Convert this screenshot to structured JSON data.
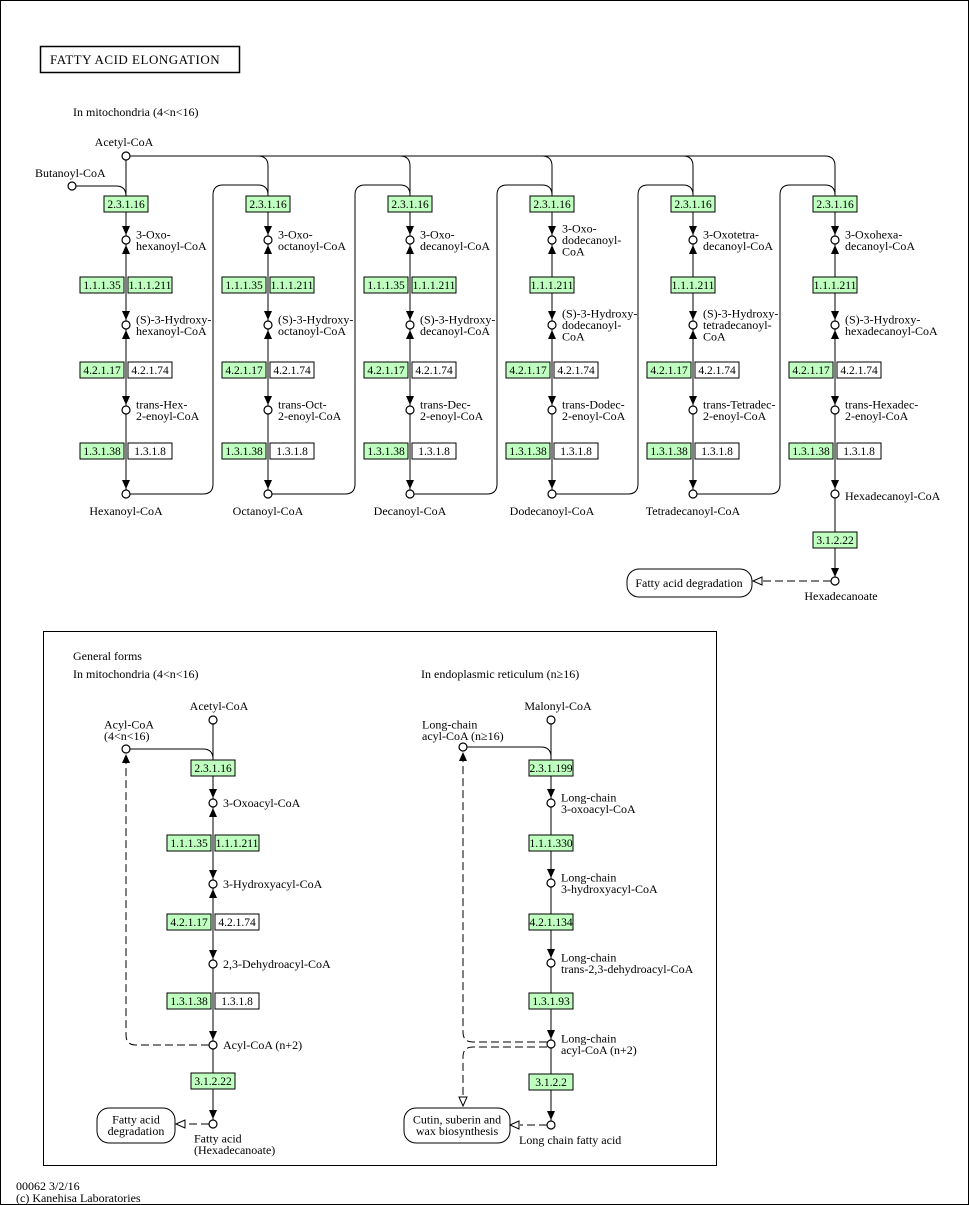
{
  "title": "FATTY ACID ELONGATION",
  "colors": {
    "highlight": "#bfffbf",
    "plain": "#ffffff",
    "line": "#000000"
  },
  "top": {
    "section_label": "In mitochondria (4<n<16)",
    "acetyl": "Acetyl-CoA",
    "butanoyl": "Butanoyl-CoA",
    "columns": [
      {
        "oxo": [
          "3-Oxo-",
          "hexanoyl-CoA"
        ],
        "hydroxy": [
          "(S)-3-Hydroxy-",
          "hexanoyl-CoA"
        ],
        "enoyl": [
          "trans-Hex-",
          "2-enoyl-CoA"
        ],
        "product": "Hexanoyl-CoA",
        "steps": [
          [
            {
              "ec": "2.3.1.16",
              "hl": true
            }
          ],
          [
            {
              "ec": "1.1.1.35",
              "hl": true
            },
            {
              "ec": "1.1.1.211",
              "hl": true
            }
          ],
          [
            {
              "ec": "4.2.1.17",
              "hl": true
            },
            {
              "ec": "4.2.1.74",
              "hl": false
            }
          ],
          [
            {
              "ec": "1.3.1.38",
              "hl": true
            },
            {
              "ec": "1.3.1.8",
              "hl": false
            }
          ]
        ]
      },
      {
        "oxo": [
          "3-Oxo-",
          "octanoyl-CoA"
        ],
        "hydroxy": [
          "(S)-3-Hydroxy-",
          "octanoyl-CoA"
        ],
        "enoyl": [
          "trans-Oct-",
          "2-enoyl-CoA"
        ],
        "product": "Octanoyl-CoA",
        "steps": [
          [
            {
              "ec": "2.3.1.16",
              "hl": true
            }
          ],
          [
            {
              "ec": "1.1.1.35",
              "hl": true
            },
            {
              "ec": "1.1.1.211",
              "hl": true
            }
          ],
          [
            {
              "ec": "4.2.1.17",
              "hl": true
            },
            {
              "ec": "4.2.1.74",
              "hl": false
            }
          ],
          [
            {
              "ec": "1.3.1.38",
              "hl": true
            },
            {
              "ec": "1.3.1.8",
              "hl": false
            }
          ]
        ]
      },
      {
        "oxo": [
          "3-Oxo-",
          "decanoyl-CoA"
        ],
        "hydroxy": [
          "(S)-3-Hydroxy-",
          "decanoyl-CoA"
        ],
        "enoyl": [
          "trans-Dec-",
          "2-enoyl-CoA"
        ],
        "product": "Decanoyl-CoA",
        "steps": [
          [
            {
              "ec": "2.3.1.16",
              "hl": true
            }
          ],
          [
            {
              "ec": "1.1.1.35",
              "hl": true
            },
            {
              "ec": "1.1.1.211",
              "hl": true
            }
          ],
          [
            {
              "ec": "4.2.1.17",
              "hl": true
            },
            {
              "ec": "4.2.1.74",
              "hl": false
            }
          ],
          [
            {
              "ec": "1.3.1.38",
              "hl": true
            },
            {
              "ec": "1.3.1.8",
              "hl": false
            }
          ]
        ]
      },
      {
        "oxo": [
          "3-Oxo-",
          "dodecanoyl-",
          "CoA"
        ],
        "hydroxy": [
          "(S)-3-Hydroxy-",
          "dodecanoyl-",
          "CoA"
        ],
        "enoyl": [
          "trans-Dodec-",
          "2-enoyl-CoA"
        ],
        "product": "Dodecanoyl-CoA",
        "steps": [
          [
            {
              "ec": "2.3.1.16",
              "hl": true
            }
          ],
          [
            {
              "ec": "1.1.1.211",
              "hl": true
            }
          ],
          [
            {
              "ec": "4.2.1.17",
              "hl": true
            },
            {
              "ec": "4.2.1.74",
              "hl": false
            }
          ],
          [
            {
              "ec": "1.3.1.38",
              "hl": true
            },
            {
              "ec": "1.3.1.8",
              "hl": false
            }
          ]
        ]
      },
      {
        "oxo": [
          "3-Oxotetra-",
          "decanoyl-CoA"
        ],
        "hydroxy": [
          "(S)-3-Hydroxy-",
          "tetradecanoyl-",
          "CoA"
        ],
        "enoyl": [
          "trans-Tetradec-",
          "2-enoyl-CoA"
        ],
        "product": "Tetradecanoyl-CoA",
        "steps": [
          [
            {
              "ec": "2.3.1.16",
              "hl": true
            }
          ],
          [
            {
              "ec": "1.1.1.211",
              "hl": true
            }
          ],
          [
            {
              "ec": "4.2.1.17",
              "hl": true
            },
            {
              "ec": "4.2.1.74",
              "hl": false
            }
          ],
          [
            {
              "ec": "1.3.1.38",
              "hl": true
            },
            {
              "ec": "1.3.1.8",
              "hl": false
            }
          ]
        ]
      },
      {
        "oxo": [
          "3-Oxohexa-",
          "decanoyl-CoA"
        ],
        "hydroxy": [
          "(S)-3-Hydroxy-",
          "hexadecanoyl-CoA"
        ],
        "enoyl": [
          "trans-Hexadec-",
          "2-enoyl-CoA"
        ],
        "product": "Hexadecanoyl-CoA",
        "steps": [
          [
            {
              "ec": "2.3.1.16",
              "hl": true
            }
          ],
          [
            {
              "ec": "1.1.1.211",
              "hl": true
            }
          ],
          [
            {
              "ec": "4.2.1.17",
              "hl": true
            },
            {
              "ec": "4.2.1.74",
              "hl": false
            }
          ],
          [
            {
              "ec": "1.3.1.38",
              "hl": true
            },
            {
              "ec": "1.3.1.8",
              "hl": false
            }
          ]
        ]
      }
    ],
    "thioesterase": {
      "ec": "3.1.2.22",
      "hl": true
    },
    "final_product": "Hexadecanoate",
    "degradation_map": "Fatty acid degradation"
  },
  "general": {
    "heading": "General forms",
    "mito": {
      "label": "In mitochondria (4<n<16)",
      "start": "Acetyl-CoA",
      "acyl": [
        "Acyl-CoA",
        "(4<n<16)"
      ],
      "intermediates": [
        "3-Oxoacyl-CoA",
        "3-Hydroxyacyl-CoA",
        "2,3-Dehydroacyl-CoA",
        "Acyl-CoA (n+2)"
      ],
      "steps": [
        [
          {
            "ec": "2.3.1.16",
            "hl": true
          }
        ],
        [
          {
            "ec": "1.1.1.35",
            "hl": true
          },
          {
            "ec": "1.1.1.211",
            "hl": true
          }
        ],
        [
          {
            "ec": "4.2.1.17",
            "hl": true
          },
          {
            "ec": "4.2.1.74",
            "hl": false
          }
        ],
        [
          {
            "ec": "1.3.1.38",
            "hl": true
          },
          {
            "ec": "1.3.1.8",
            "hl": false
          }
        ],
        [
          {
            "ec": "3.1.2.22",
            "hl": true
          }
        ]
      ],
      "product": [
        "Fatty acid",
        "(Hexadecanoate)"
      ],
      "map": [
        "Fatty acid",
        "degradation"
      ]
    },
    "er": {
      "label": "In endoplasmic reticulum (n≥16)",
      "start": "Malonyl-CoA",
      "acyl": [
        "Long-chain",
        "acyl-CoA (n≥16)"
      ],
      "intermediates": [
        [
          "Long-chain",
          "3-oxoacyl-CoA"
        ],
        [
          "Long-chain",
          "3-hydroxyacyl-CoA"
        ],
        [
          "Long-chain",
          "trans-2,3-dehydroacyl-CoA"
        ],
        [
          "Long-chain",
          "acyl-CoA (n+2)"
        ]
      ],
      "steps": [
        [
          {
            "ec": "2.3.1.199",
            "hl": true
          }
        ],
        [
          {
            "ec": "1.1.1.330",
            "hl": true
          }
        ],
        [
          {
            "ec": "4.2.1.134",
            "hl": true
          }
        ],
        [
          {
            "ec": "1.3.1.93",
            "hl": true
          }
        ],
        [
          {
            "ec": "3.1.2.2",
            "hl": true
          }
        ]
      ],
      "product": "Long chain fatty acid",
      "map": [
        "Cutin, suberin and",
        "wax biosynthesis"
      ]
    }
  },
  "footer": {
    "map_id": "00062 3/2/16",
    "copyright": "(c) Kanehisa Laboratories"
  }
}
